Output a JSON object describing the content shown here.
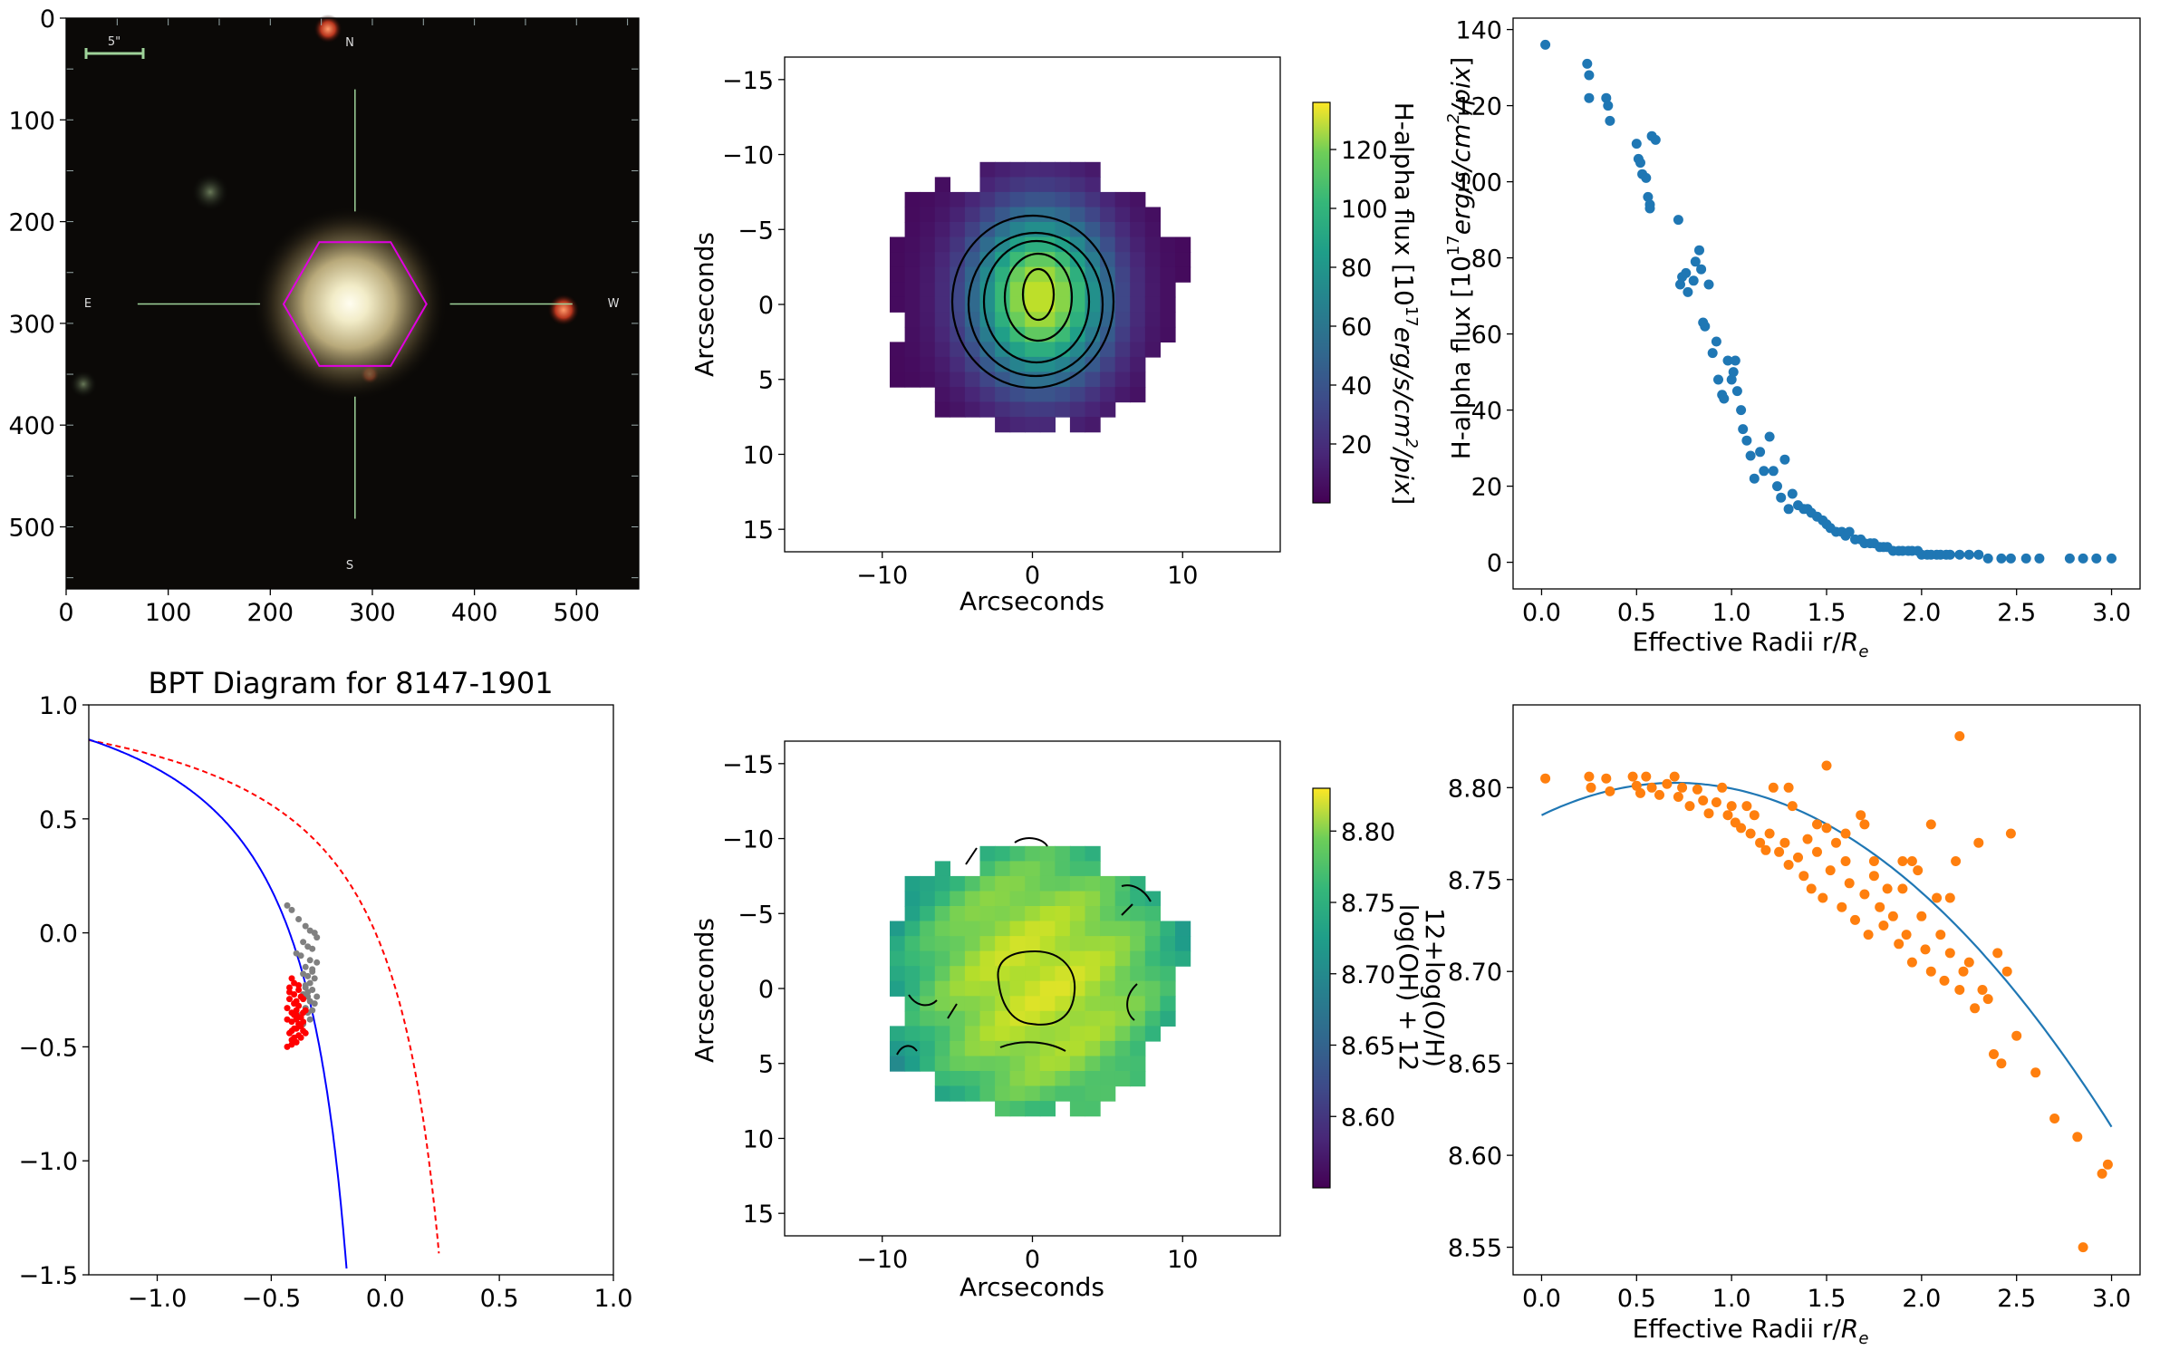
{
  "figure": {
    "background": "#ffffff"
  },
  "chart_data": [
    {
      "id": "sky",
      "type": "image",
      "xlim": [
        0,
        561
      ],
      "ylim": [
        561,
        0
      ],
      "xticks": [
        0,
        100,
        200,
        300,
        400,
        500
      ],
      "yticks": [
        0,
        100,
        200,
        300,
        400,
        500
      ],
      "compass": {
        "N": "N",
        "S": "S",
        "E": "E",
        "W": "W"
      },
      "scalebar_label": "5\"",
      "hexagon_color": "#e100e1",
      "crosshair_color": "#9fd39a"
    },
    {
      "id": "ha_map",
      "type": "heatmap",
      "xlabel": "Arcseconds",
      "ylabel": "Arcseconds",
      "xlim": [
        -16.5,
        16.5
      ],
      "ylim": [
        16.5,
        -16.5
      ],
      "xticks": [
        -10,
        0,
        10
      ],
      "yticks": [
        -15,
        -10,
        -5,
        0,
        5,
        10,
        15
      ],
      "colormap": "viridis",
      "cbar_range": [
        0,
        136
      ],
      "cbar_ticks": [
        20,
        40,
        60,
        80,
        100,
        120
      ],
      "cbar_label": "H-alpha flux [10^17 erg/s/cm^2/pix]",
      "grid": false
    },
    {
      "id": "ha_profile",
      "type": "scatter",
      "xlabel": "Effective Radii r/R_e",
      "ylabel": "H-alpha flux [10^17 erg/s/cm^2/pix]",
      "xlim": [
        -0.15,
        3.15
      ],
      "ylim": [
        -7,
        143
      ],
      "xticks": [
        0.0,
        0.5,
        1.0,
        1.5,
        2.0,
        2.5,
        3.0
      ],
      "yticks": [
        0,
        20,
        40,
        60,
        80,
        100,
        120,
        140
      ],
      "color": "#1f77b4",
      "x": [
        0.02,
        0.24,
        0.25,
        0.25,
        0.34,
        0.35,
        0.36,
        0.5,
        0.51,
        0.52,
        0.53,
        0.55,
        0.56,
        0.57,
        0.57,
        0.58,
        0.6,
        0.72,
        0.73,
        0.74,
        0.76,
        0.77,
        0.8,
        0.81,
        0.83,
        0.84,
        0.85,
        0.86,
        0.88,
        0.9,
        0.92,
        0.93,
        0.95,
        0.96,
        0.98,
        1.0,
        1.01,
        1.02,
        1.03,
        1.05,
        1.06,
        1.08,
        1.1,
        1.12,
        1.15,
        1.17,
        1.2,
        1.22,
        1.24,
        1.26,
        1.28,
        1.3,
        1.32,
        1.35,
        1.38,
        1.4,
        1.42,
        1.45,
        1.48,
        1.5,
        1.52,
        1.55,
        1.58,
        1.6,
        1.62,
        1.65,
        1.68,
        1.7,
        1.73,
        1.75,
        1.78,
        1.8,
        1.82,
        1.85,
        1.88,
        1.9,
        1.93,
        1.95,
        1.98,
        2.0,
        2.03,
        2.05,
        2.08,
        2.1,
        2.13,
        2.15,
        2.2,
        2.25,
        2.3,
        2.35,
        2.42,
        2.47,
        2.55,
        2.62,
        2.78,
        2.85,
        2.92,
        3.0
      ],
      "y": [
        136,
        131,
        128,
        122,
        122,
        120,
        116,
        110,
        106,
        105,
        102,
        101,
        96,
        94,
        93,
        112,
        111,
        90,
        73,
        75,
        76,
        71,
        74,
        79,
        82,
        77,
        63,
        62,
        73,
        55,
        58,
        48,
        44,
        43,
        53,
        48,
        50,
        53,
        45,
        40,
        35,
        32,
        28,
        22,
        29,
        24,
        33,
        24,
        20,
        17,
        27,
        14,
        18,
        15,
        14,
        14,
        13,
        12,
        11,
        10,
        9,
        8,
        8,
        7,
        8,
        6,
        6,
        5,
        5,
        5,
        4,
        4,
        4,
        3,
        3,
        3,
        3,
        3,
        3,
        2,
        2,
        2,
        2,
        2,
        2,
        2,
        2,
        2,
        2,
        1,
        1,
        1,
        1,
        1,
        1,
        1,
        1,
        1
      ]
    },
    {
      "id": "bpt",
      "type": "scatter",
      "title": "BPT Diagram for 8147-1901",
      "xlim": [
        -1.3,
        1.0
      ],
      "ylim": [
        -1.5,
        1.0
      ],
      "xticks": [
        -1.0,
        -0.5,
        0.0,
        0.5,
        1.0
      ],
      "yticks": [
        -1.5,
        -1.0,
        -0.5,
        0.0,
        0.5,
        1.0
      ],
      "kauffmann_color": "#0000ff",
      "kewley_color": "#ff0000",
      "series": [
        {
          "color": "#ff0000",
          "x": [
            -0.41,
            -0.42,
            -0.4,
            -0.39,
            -0.43,
            -0.38,
            -0.4,
            -0.41,
            -0.37,
            -0.39,
            -0.42,
            -0.4,
            -0.38,
            -0.36,
            -0.41,
            -0.39,
            -0.43,
            -0.37,
            -0.4,
            -0.38,
            -0.42,
            -0.36,
            -0.39,
            -0.41,
            -0.37,
            -0.4,
            -0.38,
            -0.35,
            -0.42,
            -0.39,
            -0.36,
            -0.41,
            -0.38,
            -0.4,
            -0.37,
            -0.35,
            -0.43,
            -0.39,
            -0.36,
            -0.41
          ],
          "y": [
            -0.2,
            -0.24,
            -0.27,
            -0.3,
            -0.33,
            -0.25,
            -0.36,
            -0.39,
            -0.28,
            -0.42,
            -0.44,
            -0.46,
            -0.32,
            -0.35,
            -0.49,
            -0.38,
            -0.5,
            -0.41,
            -0.22,
            -0.45,
            -0.29,
            -0.43,
            -0.34,
            -0.47,
            -0.37,
            -0.31,
            -0.4,
            -0.44,
            -0.26,
            -0.48,
            -0.39,
            -0.35,
            -0.23,
            -0.42,
            -0.46,
            -0.34,
            -0.38,
            -0.36,
            -0.29,
            -0.43
          ]
        },
        {
          "color": "#808080",
          "x": [
            -0.43,
            -0.41,
            -0.38,
            -0.35,
            -0.33,
            -0.31,
            -0.3,
            -0.36,
            -0.34,
            -0.32,
            -0.39,
            -0.37,
            -0.33,
            -0.3,
            -0.35,
            -0.32,
            -0.36,
            -0.34,
            -0.31,
            -0.33,
            -0.35,
            -0.32,
            -0.34,
            -0.36,
            -0.3,
            -0.33,
            -0.31,
            -0.35,
            -0.32,
            -0.34,
            -0.37,
            -0.33,
            -0.36,
            -0.34,
            -0.32,
            -0.35
          ],
          "y": [
            0.12,
            0.1,
            0.06,
            0.03,
            0.01,
            0.0,
            -0.02,
            -0.04,
            -0.06,
            -0.07,
            -0.09,
            -0.1,
            -0.12,
            -0.13,
            -0.15,
            -0.16,
            -0.18,
            -0.19,
            -0.2,
            -0.22,
            -0.23,
            -0.25,
            -0.26,
            -0.27,
            -0.28,
            -0.3,
            -0.31,
            -0.33,
            -0.34,
            -0.35,
            -0.36,
            -0.38,
            -0.4,
            -0.28,
            -0.17,
            -0.24
          ]
        }
      ]
    },
    {
      "id": "oh_map",
      "type": "heatmap",
      "xlabel": "Arcseconds",
      "ylabel": "Arcseconds",
      "xlim": [
        -16.5,
        16.5
      ],
      "ylim": [
        16.5,
        -16.5
      ],
      "xticks": [
        -10,
        0,
        10
      ],
      "yticks": [
        -15,
        -10,
        -5,
        0,
        5,
        10,
        15
      ],
      "colormap": "viridis",
      "cbar_range": [
        8.55,
        8.83
      ],
      "cbar_ticks": [
        8.6,
        8.65,
        8.7,
        8.75,
        8.8
      ],
      "cbar_label": "log(OH) + 12",
      "cbar_label2": "12+log(O/H)",
      "grid": false
    },
    {
      "id": "oh_profile",
      "type": "scatter",
      "xlabel": "Effective Radii r/R_e",
      "xlim": [
        -0.15,
        3.15
      ],
      "ylim": [
        8.535,
        8.845
      ],
      "xticks": [
        0.0,
        0.5,
        1.0,
        1.5,
        2.0,
        2.5,
        3.0
      ],
      "yticks": [
        8.55,
        8.6,
        8.65,
        8.7,
        8.75,
        8.8
      ],
      "point_color": "#ff7f0e",
      "fit_color": "#1f77b4",
      "fit_coeffs": [
        8.785,
        0.05,
        -0.0355
      ],
      "x": [
        0.02,
        0.25,
        0.26,
        0.34,
        0.36,
        0.48,
        0.5,
        0.52,
        0.55,
        0.58,
        0.62,
        0.66,
        0.7,
        0.72,
        0.74,
        0.78,
        0.82,
        0.85,
        0.88,
        0.92,
        0.95,
        0.98,
        1.0,
        1.02,
        1.05,
        1.08,
        1.1,
        1.12,
        1.15,
        1.18,
        1.2,
        1.22,
        1.25,
        1.28,
        1.3,
        1.32,
        1.35,
        1.38,
        1.4,
        1.42,
        1.45,
        1.48,
        1.5,
        1.52,
        1.55,
        1.58,
        1.6,
        1.62,
        1.65,
        1.68,
        1.7,
        1.72,
        1.75,
        1.78,
        1.8,
        1.82,
        1.85,
        1.88,
        1.9,
        1.92,
        1.95,
        1.98,
        2.0,
        2.02,
        2.05,
        2.08,
        2.1,
        2.12,
        2.15,
        2.18,
        2.2,
        2.22,
        2.25,
        2.28,
        2.3,
        2.32,
        2.35,
        2.38,
        2.4,
        2.42,
        2.45,
        2.47,
        2.5,
        2.6,
        2.7,
        2.82,
        2.85,
        2.95,
        2.98,
        1.3,
        1.45,
        1.6,
        1.75,
        1.9,
        2.05,
        2.2,
        1.5,
        1.7,
        1.95,
        2.15
      ],
      "y": [
        8.805,
        8.806,
        8.8,
        8.805,
        8.798,
        8.806,
        8.801,
        8.797,
        8.806,
        8.8,
        8.796,
        8.802,
        8.806,
        8.795,
        8.8,
        8.79,
        8.799,
        8.793,
        8.786,
        8.792,
        8.8,
        8.785,
        8.79,
        8.781,
        8.778,
        8.79,
        8.775,
        8.785,
        8.77,
        8.766,
        8.775,
        8.8,
        8.765,
        8.77,
        8.758,
        8.79,
        8.762,
        8.752,
        8.772,
        8.745,
        8.765,
        8.74,
        8.778,
        8.755,
        8.77,
        8.735,
        8.76,
        8.748,
        8.728,
        8.785,
        8.742,
        8.72,
        8.752,
        8.735,
        8.725,
        8.745,
        8.73,
        8.715,
        8.76,
        8.72,
        8.705,
        8.755,
        8.73,
        8.712,
        8.7,
        8.74,
        8.72,
        8.695,
        8.71,
        8.76,
        8.69,
        8.7,
        8.705,
        8.68,
        8.77,
        8.69,
        8.685,
        8.655,
        8.71,
        8.65,
        8.7,
        8.775,
        8.665,
        8.645,
        8.62,
        8.61,
        8.55,
        8.59,
        8.595,
        8.8,
        8.78,
        8.775,
        8.76,
        8.745,
        8.78,
        8.828,
        8.812,
        8.78,
        8.76,
        8.74
      ]
    }
  ]
}
